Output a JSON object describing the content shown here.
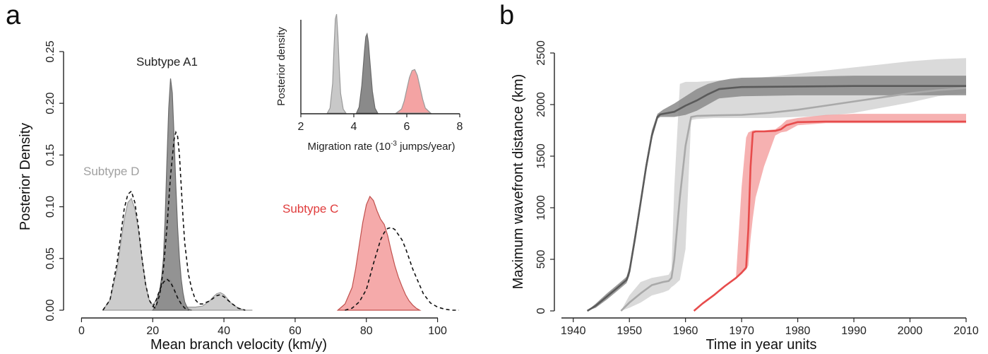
{
  "chart_data": [
    {
      "panel_label": "a",
      "type": "area",
      "xlabel": "Mean branch velocity (km/y)",
      "ylabel": "Posterior Density",
      "xlim": [
        -10,
        110
      ],
      "ylim": [
        0,
        0.25
      ],
      "xticks": [
        0,
        20,
        40,
        60,
        80,
        100
      ],
      "yticks": [
        0.0,
        0.05,
        0.1,
        0.15,
        0.2,
        0.25
      ],
      "ytick_labels": [
        "0.00",
        "0.05",
        "0.10",
        "0.15",
        "0.20",
        "0.25"
      ],
      "grid": false,
      "series": [
        {
          "name": "Subtype D",
          "color": "#c8c8c8",
          "stroke": "#9a9a9a",
          "label_color": "#a0a0a0",
          "x": [
            6,
            8,
            10,
            12,
            13,
            14,
            15,
            16,
            17,
            18,
            19,
            20,
            21,
            22,
            23,
            24,
            25,
            26,
            27,
            28,
            29,
            30,
            32,
            34,
            36,
            37,
            38,
            39,
            40,
            41,
            42,
            44,
            46,
            48
          ],
          "y": [
            0,
            0.01,
            0.04,
            0.088,
            0.104,
            0.108,
            0.098,
            0.077,
            0.05,
            0.025,
            0.01,
            0.005,
            0.01,
            0.02,
            0.028,
            0.031,
            0.029,
            0.022,
            0.013,
            0.006,
            0.003,
            0.003,
            0.003,
            0.004,
            0.009,
            0.013,
            0.016,
            0.017,
            0.015,
            0.011,
            0.007,
            0.002,
            0.0,
            0
          ]
        },
        {
          "name": "Subtype A1",
          "color": "#8a8a8a",
          "stroke": "#6a6a6a",
          "label_color": "#222222",
          "x": [
            20,
            21,
            22,
            22.5,
            23,
            23.5,
            24,
            24.5,
            25,
            25.5,
            26,
            26.5,
            27,
            27.5,
            28,
            28.5,
            29,
            29.5,
            30,
            31
          ],
          "y": [
            0,
            0.005,
            0.02,
            0.032,
            0.05,
            0.09,
            0.145,
            0.195,
            0.224,
            0.21,
            0.168,
            0.12,
            0.08,
            0.05,
            0.03,
            0.017,
            0.008,
            0.004,
            0.001,
            0
          ]
        },
        {
          "name": "Subtype C",
          "color": "#f4a3a3",
          "stroke": "#c0504d",
          "label_color": "#e03c3c",
          "x": [
            72,
            74,
            76,
            77,
            78,
            79,
            80,
            81,
            82,
            83,
            84,
            85,
            86,
            87,
            88,
            89,
            90,
            91,
            92,
            93,
            94,
            95
          ],
          "y": [
            0,
            0.006,
            0.022,
            0.04,
            0.063,
            0.085,
            0.102,
            0.11,
            0.106,
            0.096,
            0.088,
            0.083,
            0.072,
            0.057,
            0.043,
            0.032,
            0.023,
            0.015,
            0.009,
            0.005,
            0.002,
            0
          ]
        },
        {
          "name": "dashed-D",
          "dashed": true,
          "x": [
            6,
            8,
            10,
            12,
            13,
            14,
            15,
            16,
            17,
            18,
            19,
            20,
            21
          ],
          "y": [
            0,
            0.01,
            0.046,
            0.098,
            0.112,
            0.115,
            0.104,
            0.08,
            0.05,
            0.025,
            0.01,
            0.004,
            0.001
          ]
        },
        {
          "name": "dashed-A1",
          "dashed": true,
          "x": [
            21,
            22,
            23,
            24,
            25,
            26,
            26.5,
            27,
            27.5,
            28,
            28.5,
            29,
            30,
            31,
            32,
            33,
            34,
            36,
            38,
            39,
            40,
            42,
            44,
            46
          ],
          "y": [
            0.005,
            0.015,
            0.04,
            0.08,
            0.13,
            0.165,
            0.172,
            0.168,
            0.15,
            0.12,
            0.09,
            0.065,
            0.035,
            0.02,
            0.01,
            0.006,
            0.006,
            0.009,
            0.014,
            0.015,
            0.013,
            0.007,
            0.002,
            0
          ]
        },
        {
          "name": "dashed-A1b",
          "dashed": true,
          "x": [
            20,
            21,
            22,
            23,
            24,
            25,
            26,
            27,
            28,
            29,
            30
          ],
          "y": [
            0.003,
            0.01,
            0.02,
            0.027,
            0.03,
            0.027,
            0.02,
            0.012,
            0.006,
            0.002,
            0.0
          ]
        },
        {
          "name": "dashed-C",
          "dashed": true,
          "x": [
            74,
            76,
            78,
            80,
            82,
            84,
            85,
            86,
            87,
            88,
            89,
            90,
            91,
            92,
            93,
            94,
            95,
            96,
            98,
            100,
            102,
            104,
            106
          ],
          "y": [
            0,
            0.002,
            0.008,
            0.02,
            0.045,
            0.068,
            0.075,
            0.079,
            0.08,
            0.078,
            0.073,
            0.068,
            0.06,
            0.05,
            0.04,
            0.032,
            0.024,
            0.016,
            0.007,
            0.003,
            0.001,
            0.0,
            0
          ]
        }
      ],
      "annotations": [
        "Subtype A1",
        "Subtype D",
        "Subtype C"
      ]
    },
    {
      "panel_label": "a-inset",
      "type": "area",
      "xlabel": "Migration rate (10-3 jumps/year)",
      "xlabel_parts": [
        "Migration rate (10",
        "-3",
        " jumps/year)"
      ],
      "ylabel": "Posterior density",
      "xlim": [
        2,
        8
      ],
      "xticks": [
        2,
        4,
        6,
        8
      ],
      "series": [
        {
          "name": "Subtype D",
          "color": "#c8c8c8",
          "stroke": "#9a9a9a",
          "x": [
            3.0,
            3.1,
            3.2,
            3.25,
            3.3,
            3.35,
            3.4,
            3.45,
            3.5,
            3.6,
            3.7
          ],
          "y": [
            0,
            0.05,
            0.3,
            0.65,
            0.95,
            1.0,
            0.78,
            0.45,
            0.2,
            0.04,
            0
          ]
        },
        {
          "name": "Subtype A1",
          "color": "#8a8a8a",
          "stroke": "#6a6a6a",
          "x": [
            4.1,
            4.2,
            4.3,
            4.4,
            4.45,
            4.5,
            4.55,
            4.6,
            4.7,
            4.8,
            4.9
          ],
          "y": [
            0,
            0.06,
            0.28,
            0.62,
            0.77,
            0.8,
            0.72,
            0.55,
            0.22,
            0.05,
            0
          ]
        },
        {
          "name": "Subtype C",
          "color": "#f4a3a3",
          "stroke": "#9a9a9a",
          "x": [
            5.6,
            5.8,
            5.9,
            6.0,
            6.1,
            6.2,
            6.3,
            6.4,
            6.5,
            6.6,
            6.7,
            6.9
          ],
          "y": [
            0,
            0.04,
            0.12,
            0.24,
            0.36,
            0.43,
            0.44,
            0.38,
            0.26,
            0.14,
            0.05,
            0
          ]
        }
      ]
    },
    {
      "panel_label": "b",
      "type": "line",
      "xlabel": "Time in year units",
      "ylabel": "Maximum wavefront distance (km)",
      "xlim": [
        1935,
        2010
      ],
      "ylim": [
        0,
        2500
      ],
      "xticks": [
        1940,
        1950,
        1960,
        1970,
        1980,
        1990,
        2000,
        2010
      ],
      "yticks": [
        0,
        500,
        1000,
        1500,
        2000,
        2500
      ],
      "grid": false,
      "series": [
        {
          "name": "Subtype D",
          "color": "#a9a9a9",
          "band_color": "#d3d3d3",
          "x": [
            1948.5,
            1950,
            1952,
            1954,
            1956,
            1957,
            1957.5,
            1958,
            1959,
            1960,
            1961,
            1962,
            1965,
            1970,
            1975,
            1980,
            1985,
            1990,
            1995,
            2000,
            2005,
            2010
          ],
          "y": [
            0,
            80,
            170,
            250,
            280,
            290,
            320,
            500,
            1100,
            1600,
            1880,
            1890,
            1895,
            1900,
            1920,
            1950,
            1990,
            2030,
            2070,
            2110,
            2140,
            2160
          ],
          "upper": [
            0,
            150,
            280,
            320,
            340,
            350,
            400,
            1200,
            2200,
            2220,
            2220,
            2220,
            2230,
            2250,
            2270,
            2300,
            2330,
            2360,
            2390,
            2420,
            2440,
            2450
          ],
          "lower": [
            0,
            30,
            80,
            150,
            180,
            200,
            230,
            250,
            300,
            600,
            1850,
            1860,
            1870,
            1870,
            1870,
            1880,
            1890,
            1920,
            1970,
            2020,
            2080,
            2110
          ]
        },
        {
          "name": "Subtype A1",
          "color": "#5a5a5a",
          "band_color": "#8a8a8a",
          "x": [
            1942.5,
            1944,
            1946,
            1948,
            1949.5,
            1950,
            1951,
            1952,
            1953,
            1954,
            1955,
            1955.5,
            1956,
            1957,
            1958,
            1960,
            1962,
            1964,
            1966,
            1968,
            1970,
            1980,
            1990,
            2000,
            2010
          ],
          "y": [
            0,
            50,
            140,
            230,
            300,
            380,
            700,
            1050,
            1400,
            1700,
            1880,
            1905,
            1910,
            1920,
            1930,
            1990,
            2040,
            2100,
            2150,
            2160,
            2170,
            2175,
            2180,
            2180,
            2180
          ],
          "upper": [
            0,
            70,
            170,
            260,
            330,
            430,
            760,
            1100,
            1450,
            1750,
            1910,
            1930,
            1950,
            1980,
            2010,
            2080,
            2150,
            2200,
            2230,
            2250,
            2260,
            2270,
            2280,
            2280,
            2280
          ],
          "lower": [
            0,
            30,
            110,
            200,
            270,
            340,
            650,
            1000,
            1350,
            1660,
            1860,
            1880,
            1880,
            1880,
            1880,
            1900,
            1940,
            2000,
            2060,
            2070,
            2080,
            2090,
            2090,
            2090,
            2090
          ]
        },
        {
          "name": "Subtype C",
          "color": "#e74c4c",
          "band_color": "#f4a3a3",
          "x": [
            1961.5,
            1963,
            1965,
            1967,
            1969,
            1970,
            1970.8,
            1971.2,
            1971.6,
            1972,
            1972.5,
            1974,
            1976,
            1977,
            1978,
            1980,
            1985,
            1990,
            2000,
            2010
          ],
          "y": [
            0,
            70,
            150,
            240,
            320,
            370,
            420,
            800,
            1400,
            1730,
            1740,
            1740,
            1745,
            1760,
            1800,
            1830,
            1835,
            1835,
            1835,
            1835
          ],
          "upper": [
            0,
            80,
            160,
            250,
            330,
            1200,
            1680,
            1730,
            1740,
            1750,
            1750,
            1750,
            1760,
            1800,
            1850,
            1870,
            1900,
            1910,
            1910,
            1910
          ],
          "lower": [
            0,
            60,
            140,
            230,
            310,
            360,
            400,
            440,
            700,
            900,
            1100,
            1400,
            1700,
            1730,
            1740,
            1800,
            1820,
            1820,
            1820,
            1820
          ]
        }
      ]
    }
  ]
}
